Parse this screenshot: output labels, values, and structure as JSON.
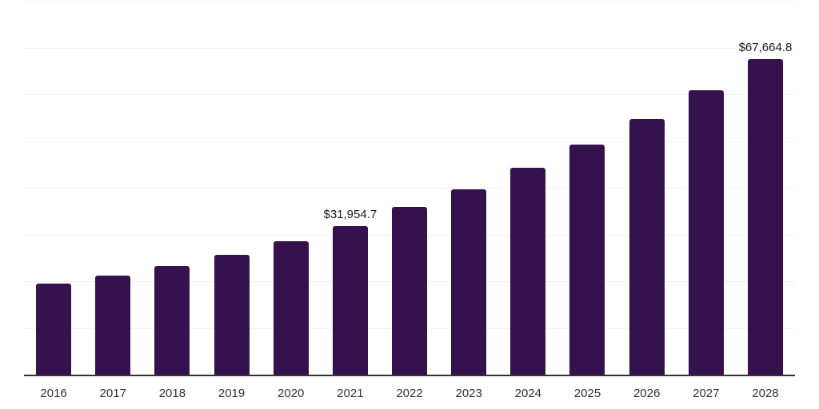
{
  "chart_data": {
    "type": "bar",
    "title": "",
    "xlabel": "",
    "ylabel": "",
    "categories": [
      "2016",
      "2017",
      "2018",
      "2019",
      "2020",
      "2021",
      "2022",
      "2023",
      "2024",
      "2025",
      "2026",
      "2027",
      "2028"
    ],
    "values": [
      19650,
      21370,
      23420,
      25810,
      28720,
      31954.7,
      36020,
      39880,
      44440,
      49400,
      54930,
      60970,
      67664.8
    ],
    "data_labels": {
      "2021": "$31,954.7",
      "2028": "$67,664.8"
    },
    "ylim": [
      0,
      80000
    ],
    "gridline_interval": 10000,
    "grid": "horizontal-only",
    "legend": "none",
    "y_axis_tick_labels": "none",
    "bar_color": "#35114d",
    "axis_line_color": "#333333",
    "gridline_color": "#f2f2f2",
    "data_label_color": "#1a1a1a",
    "tick_label_color": "#333333"
  }
}
